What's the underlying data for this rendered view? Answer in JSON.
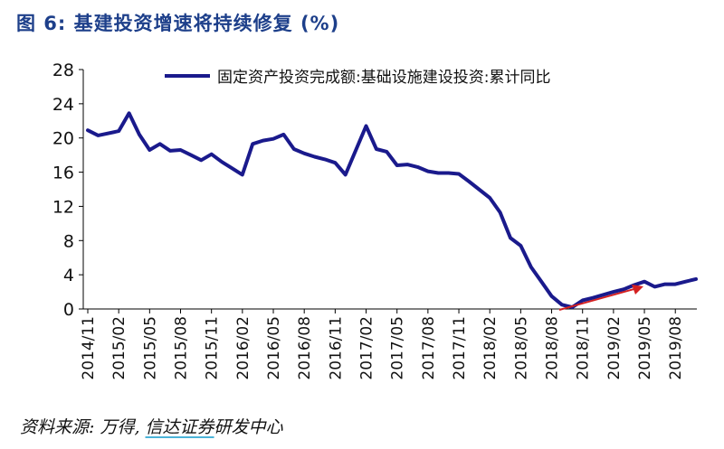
{
  "title": "图 6: 基建投资增速将持续修复 (%)",
  "source": {
    "prefix": "资料来源: 万得, ",
    "highlight": "信达证券",
    "suffix": "研发中心"
  },
  "colors": {
    "series": "#1a1a8c",
    "arrow": "#d42020",
    "axis": "#000000"
  },
  "chart_data": {
    "type": "line",
    "ylim": [
      0,
      28
    ],
    "yticks": [
      0,
      4,
      8,
      12,
      16,
      20,
      24,
      28
    ],
    "xlabels": [
      "2014/11",
      "2015/02",
      "2015/05",
      "2015/08",
      "2015/11",
      "2016/02",
      "2016/05",
      "2016/08",
      "2016/11",
      "2017/02",
      "2017/05",
      "2017/08",
      "2017/11",
      "2018/02",
      "2018/05",
      "2018/08",
      "2018/11",
      "2019/02",
      "2019/05",
      "2019/08"
    ],
    "legend_position": "top",
    "series": [
      {
        "name": "固定资产投资完成额:基础设施建设投资:累计同比",
        "x": [
          "2014/11",
          "2014/12",
          "2015/02",
          "2015/03",
          "2015/04",
          "2015/05",
          "2015/06",
          "2015/07",
          "2015/08",
          "2015/09",
          "2015/10",
          "2015/11",
          "2015/12",
          "2016/02",
          "2016/03",
          "2016/04",
          "2016/05",
          "2016/06",
          "2016/07",
          "2016/08",
          "2016/09",
          "2016/10",
          "2016/11",
          "2016/12",
          "2017/02",
          "2017/03",
          "2017/04",
          "2017/05",
          "2017/06",
          "2017/07",
          "2017/08",
          "2017/09",
          "2017/10",
          "2017/11",
          "2017/12",
          "2018/02",
          "2018/03",
          "2018/04",
          "2018/05",
          "2018/06",
          "2018/07",
          "2018/08",
          "2018/09",
          "2018/10",
          "2018/11",
          "2018/12",
          "2019/02",
          "2019/03",
          "2019/04",
          "2019/05",
          "2019/06",
          "2019/07",
          "2019/08",
          "2019/09",
          "2019/10"
        ],
        "values": [
          20.9,
          20.3,
          20.8,
          22.9,
          20.4,
          18.6,
          19.3,
          18.5,
          18.6,
          18.0,
          17.4,
          18.1,
          17.2,
          15.7,
          19.3,
          19.7,
          19.9,
          20.4,
          18.7,
          18.2,
          17.8,
          17.5,
          17.1,
          15.7,
          21.4,
          18.7,
          18.4,
          16.8,
          16.9,
          16.6,
          16.1,
          15.9,
          15.9,
          15.8,
          14.9,
          13.0,
          11.3,
          8.3,
          7.4,
          4.9,
          3.2,
          1.5,
          0.5,
          0.2,
          1.0,
          1.3,
          2.0,
          2.3,
          2.8,
          3.2,
          2.6,
          2.9,
          2.9,
          3.2,
          3.5
        ]
      }
    ]
  }
}
